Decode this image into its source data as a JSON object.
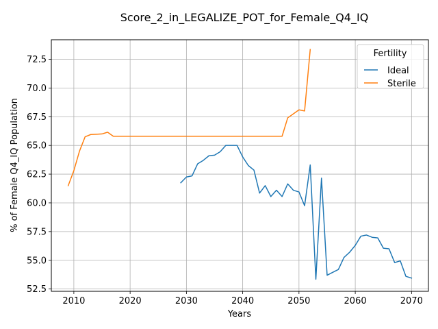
{
  "chart_data": {
    "type": "line",
    "title": "Score_2_in_LEGALIZE_POT_for_Female_Q4_IQ",
    "xlabel": "Years",
    "ylabel": "% of Female Q4_IQ Population",
    "xlim": [
      2006,
      2073
    ],
    "ylim": [
      52.3,
      74.2
    ],
    "xticks": [
      2010,
      2020,
      2030,
      2040,
      2050,
      2060,
      2070
    ],
    "yticks": [
      52.5,
      55.0,
      57.5,
      60.0,
      62.5,
      65.0,
      67.5,
      70.0,
      72.5
    ],
    "ytick_labels": [
      "52.5",
      "55.0",
      "57.5",
      "60.0",
      "62.5",
      "65.0",
      "67.5",
      "70.0",
      "72.5"
    ],
    "grid": true,
    "legend": {
      "title": "Fertility",
      "placement": "top-right"
    },
    "series": [
      {
        "name": "Ideal",
        "color": "#1f77b4",
        "x": [
          2029,
          2030,
          2031,
          2032,
          2033,
          2034,
          2035,
          2036,
          2037,
          2038,
          2039,
          2040,
          2041,
          2042,
          2043,
          2044,
          2045,
          2046,
          2047,
          2048,
          2049,
          2050,
          2051,
          2052,
          2053,
          2054,
          2055,
          2056,
          2057,
          2058,
          2059,
          2060,
          2061,
          2062,
          2063,
          2064,
          2065,
          2066,
          2067,
          2068,
          2069,
          2070
        ],
        "y": [
          61.75,
          62.25,
          62.35,
          63.4,
          63.7,
          64.1,
          64.15,
          64.45,
          65.0,
          65.0,
          65.0,
          64.0,
          63.25,
          62.85,
          60.85,
          61.5,
          60.55,
          61.1,
          60.55,
          61.65,
          61.1,
          60.95,
          59.75,
          63.3,
          53.35,
          62.15,
          53.7,
          53.95,
          54.2,
          55.25,
          55.7,
          56.3,
          57.1,
          57.2,
          57.0,
          56.95,
          56.05,
          56.0,
          54.8,
          54.95,
          53.6,
          53.45
        ]
      },
      {
        "name": "Sterile",
        "color": "#ff7f0e",
        "x": [
          2009,
          2010,
          2011,
          2012,
          2013,
          2014,
          2015,
          2016,
          2017,
          2018,
          2019,
          2020,
          2021,
          2022,
          2023,
          2024,
          2025,
          2026,
          2027,
          2028,
          2029,
          2030,
          2031,
          2032,
          2033,
          2034,
          2035,
          2036,
          2037,
          2038,
          2039,
          2040,
          2041,
          2042,
          2043,
          2044,
          2045,
          2046,
          2047,
          2048,
          2049,
          2050,
          2051,
          2052
        ],
        "y": [
          61.5,
          62.8,
          64.5,
          65.75,
          65.95,
          65.97,
          66.0,
          66.15,
          65.8,
          65.8,
          65.8,
          65.8,
          65.8,
          65.8,
          65.8,
          65.8,
          65.8,
          65.8,
          65.8,
          65.8,
          65.8,
          65.8,
          65.8,
          65.8,
          65.8,
          65.8,
          65.8,
          65.8,
          65.8,
          65.8,
          65.8,
          65.8,
          65.8,
          65.8,
          65.8,
          65.8,
          65.8,
          65.8,
          65.8,
          67.4,
          67.75,
          68.1,
          68.0,
          73.35
        ]
      }
    ]
  }
}
